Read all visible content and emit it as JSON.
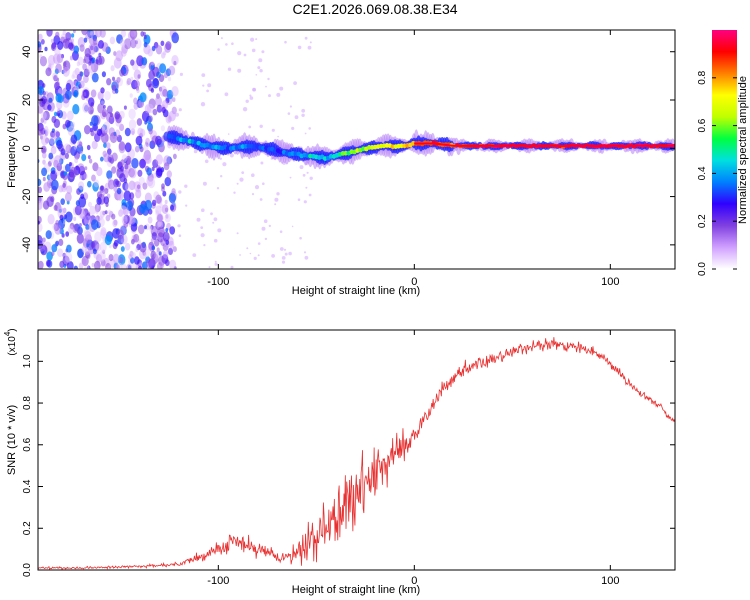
{
  "page_title": "C2E1.2026.069.08.38.E34",
  "chart_data": [
    {
      "type": "heatmap",
      "name": "spectrogram",
      "xlabel": "Height of straight line (km)",
      "ylabel": "Frequency (Hz)",
      "xlim": [
        -192,
        133
      ],
      "ylim": [
        -50,
        49
      ],
      "x_ticks": [
        -100,
        0,
        100
      ],
      "y_ticks": [
        -40,
        -20,
        0,
        20,
        40
      ],
      "colorbar": {
        "label": "Normalized spectral amplitude",
        "range": [
          0,
          1
        ],
        "ticks": [
          "0.0",
          "0.2",
          "0.4",
          "0.6",
          "0.8"
        ],
        "tick_values": [
          0,
          0.2,
          0.4,
          0.6,
          0.8
        ],
        "colors": [
          "#ffffff",
          "#d0a0ff",
          "#8040e0",
          "#3000ff",
          "#0080ff",
          "#00e0e0",
          "#00ff40",
          "#c0ff00",
          "#ffff00",
          "#ff8000",
          "#ff0000",
          "#ff0080"
        ]
      },
      "noise_region_km": [
        -192,
        -122
      ],
      "signal_ridge": {
        "x": [
          -125,
          -115,
          -105,
          -95,
          -85,
          -75,
          -65,
          -55,
          -45,
          -35,
          -25,
          -15,
          -5,
          0,
          10,
          20,
          30,
          50,
          70,
          90,
          100,
          110,
          133
        ],
        "freq": [
          5,
          3,
          1,
          0,
          1,
          0,
          -2,
          -3,
          -4,
          -2,
          0,
          1,
          1,
          2,
          2,
          1,
          1,
          1,
          1,
          1,
          1,
          1,
          1
        ],
        "amplitude": [
          0.35,
          0.4,
          0.4,
          0.35,
          0.35,
          0.3,
          0.35,
          0.4,
          0.45,
          0.55,
          0.65,
          0.7,
          0.75,
          0.8,
          0.85,
          0.85,
          0.9,
          0.95,
          0.95,
          0.95,
          0.95,
          0.95,
          0.95
        ]
      }
    },
    {
      "type": "line",
      "name": "snr",
      "xlabel": "Height of straight line (km)",
      "ylabel": "SNR (10 * v/v)",
      "scale_label": "(x10",
      "scale_exp": "4",
      "scale_close": ")",
      "xlim": [
        -192,
        133
      ],
      "ylim": [
        0,
        1.15
      ],
      "x_ticks": [
        -100,
        0,
        100
      ],
      "y_ticks": [
        "0.0",
        "0.2",
        "0.4",
        "0.6",
        "0.8",
        "1.0"
      ],
      "y_tick_values": [
        0,
        0.2,
        0.4,
        0.6,
        0.8,
        1.0
      ],
      "line_color": "#e83030",
      "series": [
        {
          "name": "SNR",
          "x": [
            -192,
            -170,
            -150,
            -130,
            -120,
            -110,
            -100,
            -95,
            -90,
            -85,
            -80,
            -75,
            -70,
            -65,
            -60,
            -55,
            -50,
            -45,
            -40,
            -35,
            -30,
            -25,
            -20,
            -15,
            -10,
            -5,
            0,
            5,
            10,
            15,
            20,
            25,
            30,
            35,
            40,
            45,
            50,
            55,
            60,
            65,
            70,
            75,
            80,
            85,
            90,
            95,
            100,
            105,
            110,
            115,
            120,
            125,
            130,
            133
          ],
          "y": [
            0.01,
            0.01,
            0.015,
            0.02,
            0.03,
            0.06,
            0.1,
            0.12,
            0.13,
            0.12,
            0.1,
            0.08,
            0.06,
            0.06,
            0.09,
            0.12,
            0.16,
            0.2,
            0.25,
            0.3,
            0.36,
            0.42,
            0.46,
            0.5,
            0.55,
            0.58,
            0.64,
            0.72,
            0.8,
            0.87,
            0.92,
            0.95,
            0.98,
            0.99,
            1.01,
            1.03,
            1.05,
            1.06,
            1.07,
            1.07,
            1.08,
            1.08,
            1.07,
            1.06,
            1.05,
            1.03,
            0.99,
            0.94,
            0.89,
            0.85,
            0.82,
            0.79,
            0.73,
            0.71
          ],
          "noise_amp": [
            0.005,
            0.005,
            0.006,
            0.008,
            0.01,
            0.025,
            0.04,
            0.05,
            0.05,
            0.05,
            0.04,
            0.03,
            0.02,
            0.03,
            0.05,
            0.08,
            0.1,
            0.12,
            0.13,
            0.14,
            0.14,
            0.13,
            0.12,
            0.1,
            0.08,
            0.06,
            0.05,
            0.04,
            0.035,
            0.03,
            0.03,
            0.03,
            0.03,
            0.03,
            0.03,
            0.03,
            0.03,
            0.03,
            0.03,
            0.03,
            0.03,
            0.025,
            0.025,
            0.025,
            0.02,
            0.02,
            0.02,
            0.02,
            0.02,
            0.02,
            0.015,
            0.015,
            0.015,
            0.015
          ]
        }
      ]
    }
  ]
}
